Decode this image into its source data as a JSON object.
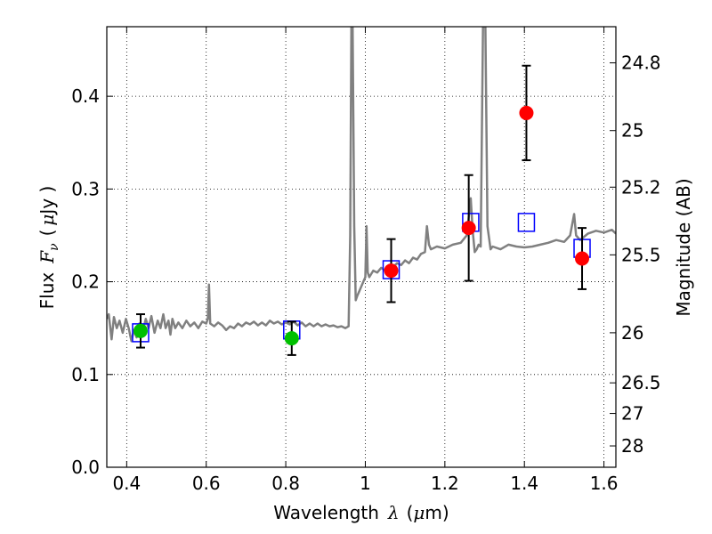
{
  "chart_data": {
    "type": "scatter",
    "title": "",
    "xlabel": "Wavelength",
    "xlabel_symbol": "λ",
    "xlabel_unit_open": "(",
    "xlabel_unit_mu": "μ",
    "xlabel_unit_rest": "m)",
    "ylabel": "Flux",
    "ylabel_symbol": "F",
    "ylabel_sub": "ν",
    "ylabel_unit_open": "(",
    "ylabel_unit_mu": "μ",
    "ylabel_unit_rest": "Jy )",
    "ylabel_right": "Magnitude (AB)",
    "xlim": [
      0.35,
      1.63
    ],
    "ylim": [
      0.0,
      0.475
    ],
    "grid": true,
    "x_ticks": [
      0.4,
      0.6,
      0.8,
      1.0,
      1.2,
      1.4,
      1.6
    ],
    "x_tick_labels": [
      "0.4",
      "0.6",
      "0.8",
      "1",
      "1.2",
      "1.4",
      "1.6"
    ],
    "y_ticks": [
      0.0,
      0.1,
      0.2,
      0.3,
      0.4
    ],
    "y_tick_labels": [
      "0.0",
      "0.1",
      "0.2",
      "0.3",
      "0.4"
    ],
    "right_ticks": [
      {
        "label": "24.8",
        "flux": 0.436
      },
      {
        "label": "25",
        "flux": 0.363
      },
      {
        "label": "25.2",
        "flux": 0.302
      },
      {
        "label": "25.5",
        "flux": 0.229
      },
      {
        "label": "26",
        "flux": 0.145
      },
      {
        "label": "26.5",
        "flux": 0.091
      },
      {
        "label": "27",
        "flux": 0.058
      },
      {
        "label": "28",
        "flux": 0.023
      }
    ],
    "series": [
      {
        "kind": "line",
        "color": "#808080",
        "points": [
          [
            0.35,
            0.16
          ],
          [
            0.355,
            0.165
          ],
          [
            0.362,
            0.138
          ],
          [
            0.368,
            0.162
          ],
          [
            0.375,
            0.15
          ],
          [
            0.382,
            0.158
          ],
          [
            0.39,
            0.145
          ],
          [
            0.398,
            0.16
          ],
          [
            0.405,
            0.15
          ],
          [
            0.412,
            0.136
          ],
          [
            0.418,
            0.148
          ],
          [
            0.425,
            0.14
          ],
          [
            0.432,
            0.155
          ],
          [
            0.44,
            0.145
          ],
          [
            0.448,
            0.16
          ],
          [
            0.455,
            0.15
          ],
          [
            0.462,
            0.163
          ],
          [
            0.47,
            0.145
          ],
          [
            0.478,
            0.158
          ],
          [
            0.485,
            0.15
          ],
          [
            0.492,
            0.165
          ],
          [
            0.498,
            0.15
          ],
          [
            0.505,
            0.158
          ],
          [
            0.51,
            0.143
          ],
          [
            0.515,
            0.16
          ],
          [
            0.522,
            0.15
          ],
          [
            0.53,
            0.156
          ],
          [
            0.54,
            0.15
          ],
          [
            0.55,
            0.158
          ],
          [
            0.56,
            0.152
          ],
          [
            0.57,
            0.156
          ],
          [
            0.58,
            0.15
          ],
          [
            0.59,
            0.157
          ],
          [
            0.6,
            0.155
          ],
          [
            0.604,
            0.16
          ],
          [
            0.607,
            0.197
          ],
          [
            0.61,
            0.155
          ],
          [
            0.62,
            0.152
          ],
          [
            0.63,
            0.156
          ],
          [
            0.64,
            0.153
          ],
          [
            0.65,
            0.148
          ],
          [
            0.66,
            0.152
          ],
          [
            0.67,
            0.15
          ],
          [
            0.68,
            0.155
          ],
          [
            0.69,
            0.152
          ],
          [
            0.7,
            0.156
          ],
          [
            0.71,
            0.154
          ],
          [
            0.72,
            0.157
          ],
          [
            0.73,
            0.153
          ],
          [
            0.74,
            0.156
          ],
          [
            0.75,
            0.153
          ],
          [
            0.76,
            0.158
          ],
          [
            0.77,
            0.155
          ],
          [
            0.78,
            0.157
          ],
          [
            0.79,
            0.154
          ],
          [
            0.8,
            0.156
          ],
          [
            0.81,
            0.154
          ],
          [
            0.82,
            0.157
          ],
          [
            0.83,
            0.153
          ],
          [
            0.84,
            0.156
          ],
          [
            0.85,
            0.152
          ],
          [
            0.86,
            0.155
          ],
          [
            0.87,
            0.152
          ],
          [
            0.88,
            0.155
          ],
          [
            0.89,
            0.152
          ],
          [
            0.9,
            0.154
          ],
          [
            0.91,
            0.152
          ],
          [
            0.92,
            0.153
          ],
          [
            0.93,
            0.151
          ],
          [
            0.94,
            0.152
          ],
          [
            0.95,
            0.15
          ],
          [
            0.958,
            0.152
          ],
          [
            0.962,
            0.25
          ],
          [
            0.965,
            0.475
          ],
          [
            0.968,
            0.475
          ],
          [
            0.972,
            0.26
          ],
          [
            0.976,
            0.18
          ],
          [
            0.98,
            0.185
          ],
          [
            0.985,
            0.19
          ],
          [
            0.99,
            0.195
          ],
          [
            0.995,
            0.2
          ],
          [
            1.0,
            0.205
          ],
          [
            1.003,
            0.26
          ],
          [
            1.006,
            0.21
          ],
          [
            1.01,
            0.205
          ],
          [
            1.02,
            0.212
          ],
          [
            1.03,
            0.21
          ],
          [
            1.04,
            0.215
          ],
          [
            1.05,
            0.212
          ],
          [
            1.06,
            0.218
          ],
          [
            1.07,
            0.216
          ],
          [
            1.08,
            0.22
          ],
          [
            1.09,
            0.218
          ],
          [
            1.1,
            0.223
          ],
          [
            1.11,
            0.22
          ],
          [
            1.12,
            0.226
          ],
          [
            1.13,
            0.224
          ],
          [
            1.14,
            0.23
          ],
          [
            1.15,
            0.232
          ],
          [
            1.155,
            0.26
          ],
          [
            1.16,
            0.24
          ],
          [
            1.165,
            0.235
          ],
          [
            1.18,
            0.238
          ],
          [
            1.2,
            0.236
          ],
          [
            1.22,
            0.24
          ],
          [
            1.24,
            0.242
          ],
          [
            1.255,
            0.25
          ],
          [
            1.265,
            0.29
          ],
          [
            1.27,
            0.255
          ],
          [
            1.275,
            0.232
          ],
          [
            1.28,
            0.235
          ],
          [
            1.285,
            0.24
          ],
          [
            1.29,
            0.238
          ],
          [
            1.296,
            0.475
          ],
          [
            1.302,
            0.475
          ],
          [
            1.307,
            0.26
          ],
          [
            1.315,
            0.235
          ],
          [
            1.32,
            0.238
          ],
          [
            1.34,
            0.235
          ],
          [
            1.36,
            0.24
          ],
          [
            1.38,
            0.238
          ],
          [
            1.4,
            0.237
          ],
          [
            1.42,
            0.238
          ],
          [
            1.44,
            0.24
          ],
          [
            1.46,
            0.242
          ],
          [
            1.48,
            0.245
          ],
          [
            1.5,
            0.243
          ],
          [
            1.515,
            0.25
          ],
          [
            1.525,
            0.273
          ],
          [
            1.53,
            0.25
          ],
          [
            1.54,
            0.245
          ],
          [
            1.56,
            0.252
          ],
          [
            1.58,
            0.255
          ],
          [
            1.6,
            0.253
          ],
          [
            1.62,
            0.256
          ],
          [
            1.63,
            0.252
          ]
        ]
      },
      {
        "kind": "open-square",
        "color": "#0000ff",
        "points": [
          [
            0.435,
            0.145
          ],
          [
            0.815,
            0.148
          ],
          [
            1.065,
            0.213
          ],
          [
            1.265,
            0.264
          ],
          [
            1.405,
            0.264
          ],
          [
            1.545,
            0.236
          ]
        ]
      },
      {
        "kind": "circle",
        "color": "#00c000",
        "points": [
          {
            "x": 0.435,
            "y": 0.147,
            "yerr": 0.018
          },
          {
            "x": 0.815,
            "y": 0.139,
            "yerr": 0.018
          }
        ]
      },
      {
        "kind": "circle",
        "color": "#ff0000",
        "points": [
          {
            "x": 1.065,
            "y": 0.212,
            "yerr": 0.034
          },
          {
            "x": 1.26,
            "y": 0.258,
            "yerr": 0.057
          },
          {
            "x": 1.405,
            "y": 0.382,
            "yerr": 0.051
          },
          {
            "x": 1.545,
            "y": 0.225,
            "yerr": 0.033
          }
        ]
      }
    ]
  }
}
